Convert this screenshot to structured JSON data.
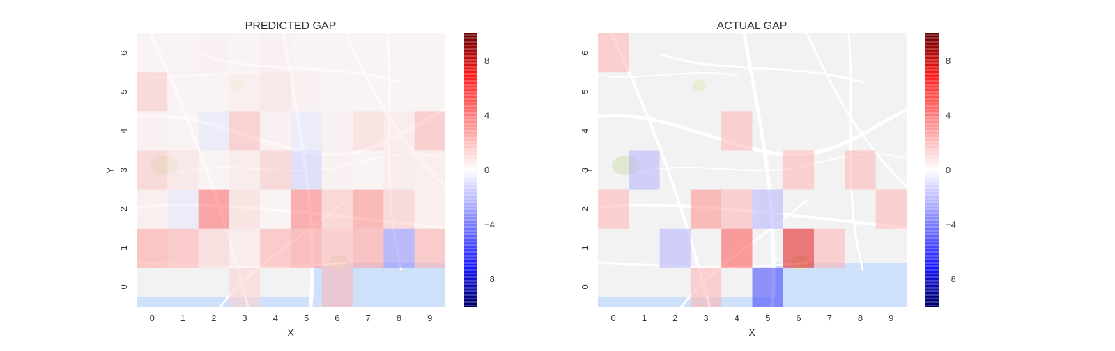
{
  "colors": {
    "negative": "#1a1aff",
    "neutral": "#ffffff",
    "positive": "#ff1a1a",
    "text": "#333333",
    "map_background": "#f2f2f2",
    "map_roads": "#ffffff",
    "map_water": "#cfe0fb",
    "map_park": "#dfe8cf"
  },
  "colorbar_ticks": [
    8,
    4,
    0,
    -4,
    -8
  ],
  "chart_data": [
    {
      "type": "heatmap",
      "title": "PREDICTED GAP",
      "xlabel": "X",
      "ylabel": "Y",
      "x": [
        0,
        1,
        2,
        3,
        4,
        5,
        6,
        7,
        8,
        9
      ],
      "y": [
        0,
        1,
        2,
        3,
        4,
        5,
        6
      ],
      "vmin": -10,
      "vmax": 10,
      "background": "street map",
      "cells": [
        {
          "x": 3,
          "y": 0,
          "value": 1.2
        },
        {
          "x": 6,
          "y": 0,
          "value": 2.0
        },
        {
          "x": 0,
          "y": 1,
          "value": 2.5
        },
        {
          "x": 1,
          "y": 1,
          "value": 2.2
        },
        {
          "x": 2,
          "y": 1,
          "value": 1.2
        },
        {
          "x": 3,
          "y": 1,
          "value": 0.6
        },
        {
          "x": 4,
          "y": 1,
          "value": 2.2
        },
        {
          "x": 5,
          "y": 1,
          "value": 2.8
        },
        {
          "x": 6,
          "y": 1,
          "value": 2.0
        },
        {
          "x": 7,
          "y": 1,
          "value": 2.6
        },
        {
          "x": 8,
          "y": 1,
          "value": -3.0
        },
        {
          "x": 9,
          "y": 1,
          "value": 2.2
        },
        {
          "x": 0,
          "y": 2,
          "value": 0.5
        },
        {
          "x": 1,
          "y": 2,
          "value": -0.6
        },
        {
          "x": 2,
          "y": 2,
          "value": 4.0
        },
        {
          "x": 3,
          "y": 2,
          "value": 1.0
        },
        {
          "x": 4,
          "y": 2,
          "value": 0.3
        },
        {
          "x": 5,
          "y": 2,
          "value": 3.5
        },
        {
          "x": 6,
          "y": 2,
          "value": 1.6
        },
        {
          "x": 7,
          "y": 2,
          "value": 3.0
        },
        {
          "x": 8,
          "y": 2,
          "value": 1.5
        },
        {
          "x": 9,
          "y": 2,
          "value": 0.5
        },
        {
          "x": 0,
          "y": 3,
          "value": 1.5
        },
        {
          "x": 1,
          "y": 3,
          "value": 0.8
        },
        {
          "x": 2,
          "y": 3,
          "value": 0.3
        },
        {
          "x": 3,
          "y": 3,
          "value": 0.6
        },
        {
          "x": 4,
          "y": 3,
          "value": 1.5
        },
        {
          "x": 5,
          "y": 3,
          "value": -1.2
        },
        {
          "x": 6,
          "y": 3,
          "value": 0.4
        },
        {
          "x": 7,
          "y": 3,
          "value": 0.3
        },
        {
          "x": 8,
          "y": 3,
          "value": 0.6
        },
        {
          "x": 9,
          "y": 3,
          "value": 0.5
        },
        {
          "x": 0,
          "y": 4,
          "value": 0.4
        },
        {
          "x": 1,
          "y": 4,
          "value": 0.3
        },
        {
          "x": 2,
          "y": 4,
          "value": -0.6
        },
        {
          "x": 3,
          "y": 4,
          "value": 1.8
        },
        {
          "x": 4,
          "y": 4,
          "value": 0.4
        },
        {
          "x": 5,
          "y": 4,
          "value": -0.6
        },
        {
          "x": 6,
          "y": 4,
          "value": 0.4
        },
        {
          "x": 7,
          "y": 4,
          "value": 1.0
        },
        {
          "x": 8,
          "y": 4,
          "value": 0.6
        },
        {
          "x": 9,
          "y": 4,
          "value": 2.0
        },
        {
          "x": 0,
          "y": 5,
          "value": 1.5
        },
        {
          "x": 1,
          "y": 5,
          "value": 0.3
        },
        {
          "x": 2,
          "y": 5,
          "value": 0.3
        },
        {
          "x": 3,
          "y": 5,
          "value": 0.5
        },
        {
          "x": 4,
          "y": 5,
          "value": 0.8
        },
        {
          "x": 5,
          "y": 5,
          "value": 0.4
        },
        {
          "x": 6,
          "y": 5,
          "value": 0.3
        },
        {
          "x": 7,
          "y": 5,
          "value": 0.3
        },
        {
          "x": 8,
          "y": 5,
          "value": 0.3
        },
        {
          "x": 9,
          "y": 5,
          "value": 0.3
        },
        {
          "x": 0,
          "y": 6,
          "value": 0.3
        },
        {
          "x": 1,
          "y": 6,
          "value": 0.3
        },
        {
          "x": 2,
          "y": 6,
          "value": 0.4
        },
        {
          "x": 3,
          "y": 6,
          "value": 0.3
        },
        {
          "x": 4,
          "y": 6,
          "value": 0.4
        },
        {
          "x": 5,
          "y": 6,
          "value": 0.3
        },
        {
          "x": 6,
          "y": 6,
          "value": 0.3
        },
        {
          "x": 7,
          "y": 6,
          "value": 0.3
        },
        {
          "x": 8,
          "y": 6,
          "value": 0.3
        },
        {
          "x": 9,
          "y": 6,
          "value": 0.3
        }
      ]
    },
    {
      "type": "heatmap",
      "title": "ACTUAL GAP",
      "xlabel": "X",
      "ylabel": "Y",
      "x": [
        0,
        1,
        2,
        3,
        4,
        5,
        6,
        7,
        8,
        9
      ],
      "y": [
        0,
        1,
        2,
        3,
        4,
        5,
        6
      ],
      "vmin": -10,
      "vmax": 10,
      "background": "street map",
      "cells": [
        {
          "x": 3,
          "y": 0,
          "value": 2.0
        },
        {
          "x": 5,
          "y": 0,
          "value": -5.0
        },
        {
          "x": 2,
          "y": 1,
          "value": -2.0
        },
        {
          "x": 4,
          "y": 1,
          "value": 4.5
        },
        {
          "x": 6,
          "y": 1,
          "value": 7.0
        },
        {
          "x": 7,
          "y": 1,
          "value": 2.0
        },
        {
          "x": 0,
          "y": 2,
          "value": 2.0
        },
        {
          "x": 3,
          "y": 2,
          "value": 3.0
        },
        {
          "x": 4,
          "y": 2,
          "value": 2.0
        },
        {
          "x": 5,
          "y": 2,
          "value": -2.0
        },
        {
          "x": 9,
          "y": 2,
          "value": 2.0
        },
        {
          "x": 1,
          "y": 3,
          "value": -2.0
        },
        {
          "x": 6,
          "y": 3,
          "value": 2.0
        },
        {
          "x": 8,
          "y": 3,
          "value": 2.0
        },
        {
          "x": 4,
          "y": 4,
          "value": 2.0
        },
        {
          "x": 0,
          "y": 6,
          "value": 2.0
        }
      ]
    }
  ]
}
